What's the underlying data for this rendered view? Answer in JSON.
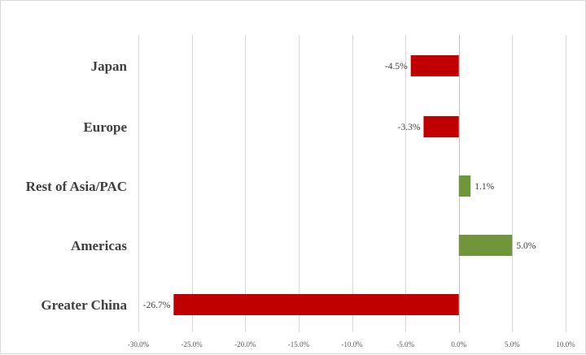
{
  "chart_data": {
    "type": "bar",
    "orientation": "horizontal",
    "title": "",
    "xlabel": "",
    "ylabel": "",
    "categories": [
      "Japan",
      "Europe",
      "Rest of Asia/PAC",
      "Americas",
      "Greater China"
    ],
    "values": [
      -4.5,
      -3.3,
      1.1,
      5.0,
      -26.7
    ],
    "data_labels": [
      "-4.5%",
      "-3.3%",
      "1.1%",
      "5.0%",
      "-26.7%"
    ],
    "xlim": [
      -30,
      10
    ],
    "x_ticks": [
      -30,
      -25,
      -20,
      -15,
      -10,
      -5,
      0,
      5,
      10
    ],
    "x_tick_labels": [
      "-30.0%",
      "-25.0%",
      "-20.0%",
      "-15.0%",
      "-10.0%",
      "-5.0%",
      "0.0%",
      "5.0%",
      "10.0%"
    ],
    "grid": true,
    "legend": false,
    "colors": {
      "negative": "#c00000",
      "positive": "#70953a"
    }
  }
}
